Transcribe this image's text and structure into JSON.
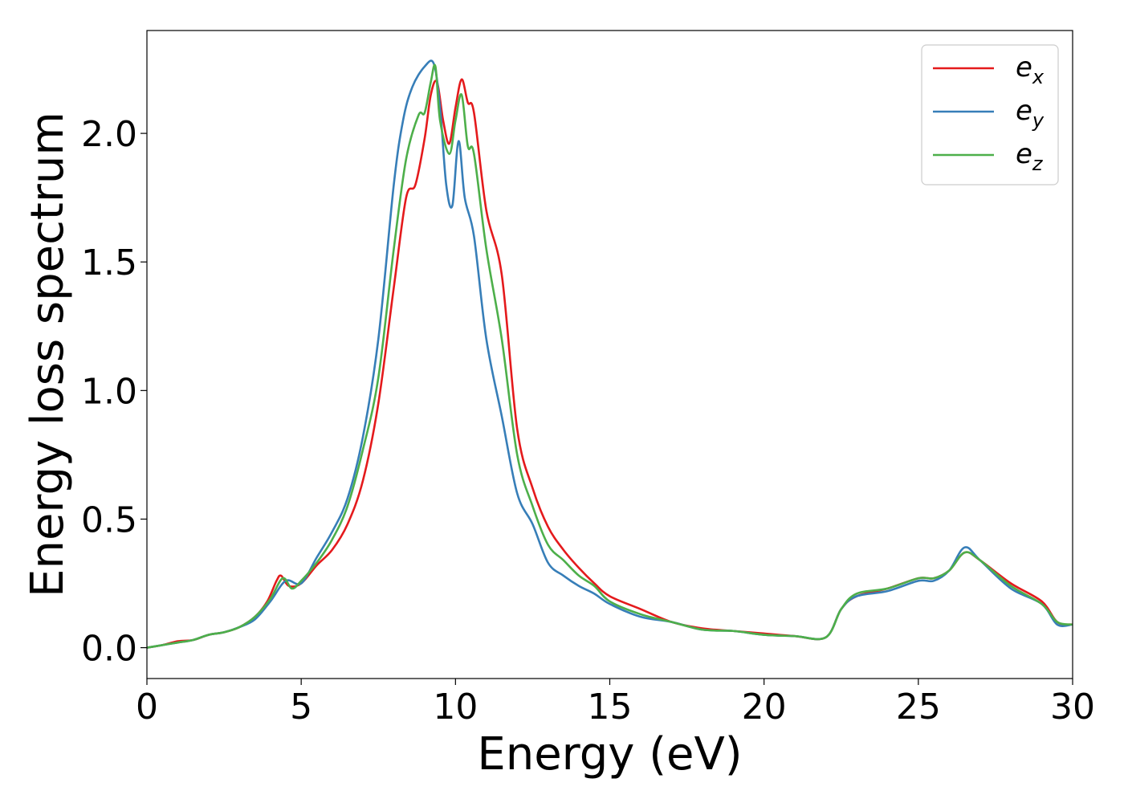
{
  "chart_data": {
    "type": "line",
    "xlabel": "Energy (eV)",
    "ylabel": "Energy loss spectrum",
    "xlim": [
      0,
      30
    ],
    "ylim": [
      -0.12,
      2.4
    ],
    "xticks": [
      0,
      5,
      10,
      15,
      20,
      25,
      30
    ],
    "xtick_labels": [
      "0",
      "5",
      "10",
      "15",
      "20",
      "25",
      "30"
    ],
    "yticks": [
      0.0,
      0.5,
      1.0,
      1.5,
      2.0
    ],
    "ytick_labels": [
      "0.0",
      "0.5",
      "1.0",
      "1.5",
      "2.0"
    ],
    "grid": false,
    "legend_position": "top-right",
    "series": [
      {
        "name": "e_x",
        "label_base": "e",
        "label_sub": "x",
        "color": "#e41a1c",
        "points": [
          [
            0.0,
            0.0
          ],
          [
            0.5,
            0.01
          ],
          [
            1.0,
            0.025
          ],
          [
            1.5,
            0.03
          ],
          [
            2.0,
            0.05
          ],
          [
            2.5,
            0.06
          ],
          [
            3.0,
            0.08
          ],
          [
            3.5,
            0.12
          ],
          [
            3.9,
            0.18
          ],
          [
            4.2,
            0.26
          ],
          [
            4.35,
            0.28
          ],
          [
            4.6,
            0.24
          ],
          [
            5.0,
            0.25
          ],
          [
            5.5,
            0.32
          ],
          [
            6.0,
            0.38
          ],
          [
            6.5,
            0.48
          ],
          [
            7.0,
            0.65
          ],
          [
            7.5,
            0.95
          ],
          [
            8.0,
            1.4
          ],
          [
            8.4,
            1.75
          ],
          [
            8.7,
            1.8
          ],
          [
            9.0,
            1.98
          ],
          [
            9.2,
            2.15
          ],
          [
            9.4,
            2.2
          ],
          [
            9.6,
            2.05
          ],
          [
            9.8,
            1.96
          ],
          [
            10.0,
            2.1
          ],
          [
            10.2,
            2.21
          ],
          [
            10.4,
            2.12
          ],
          [
            10.6,
            2.08
          ],
          [
            11.0,
            1.7
          ],
          [
            11.5,
            1.45
          ],
          [
            12.0,
            0.85
          ],
          [
            12.5,
            0.62
          ],
          [
            13.0,
            0.47
          ],
          [
            13.5,
            0.38
          ],
          [
            14.0,
            0.31
          ],
          [
            14.5,
            0.25
          ],
          [
            15.0,
            0.2
          ],
          [
            16.0,
            0.15
          ],
          [
            17.0,
            0.1
          ],
          [
            18.0,
            0.075
          ],
          [
            19.0,
            0.065
          ],
          [
            20.0,
            0.055
          ],
          [
            21.0,
            0.045
          ],
          [
            22.0,
            0.04
          ],
          [
            22.5,
            0.15
          ],
          [
            23.0,
            0.2
          ],
          [
            24.0,
            0.23
          ],
          [
            25.0,
            0.27
          ],
          [
            25.5,
            0.27
          ],
          [
            26.0,
            0.3
          ],
          [
            26.5,
            0.37
          ],
          [
            27.0,
            0.34
          ],
          [
            28.0,
            0.25
          ],
          [
            29.0,
            0.18
          ],
          [
            29.5,
            0.1
          ],
          [
            30.0,
            0.09
          ]
        ]
      },
      {
        "name": "e_y",
        "label_base": "e",
        "label_sub": "y",
        "color": "#377eb8",
        "points": [
          [
            0.0,
            0.0
          ],
          [
            0.5,
            0.01
          ],
          [
            1.0,
            0.02
          ],
          [
            1.5,
            0.03
          ],
          [
            2.0,
            0.05
          ],
          [
            2.5,
            0.06
          ],
          [
            3.0,
            0.08
          ],
          [
            3.5,
            0.11
          ],
          [
            4.0,
            0.18
          ],
          [
            4.5,
            0.26
          ],
          [
            5.0,
            0.25
          ],
          [
            5.5,
            0.35
          ],
          [
            6.0,
            0.45
          ],
          [
            6.5,
            0.58
          ],
          [
            7.0,
            0.82
          ],
          [
            7.5,
            1.2
          ],
          [
            8.0,
            1.8
          ],
          [
            8.3,
            2.05
          ],
          [
            8.6,
            2.18
          ],
          [
            9.0,
            2.26
          ],
          [
            9.3,
            2.27
          ],
          [
            9.5,
            2.1
          ],
          [
            9.7,
            1.8
          ],
          [
            9.9,
            1.72
          ],
          [
            10.1,
            1.97
          ],
          [
            10.3,
            1.75
          ],
          [
            10.6,
            1.6
          ],
          [
            11.0,
            1.2
          ],
          [
            11.5,
            0.9
          ],
          [
            12.0,
            0.6
          ],
          [
            12.5,
            0.48
          ],
          [
            13.0,
            0.33
          ],
          [
            13.5,
            0.28
          ],
          [
            14.0,
            0.24
          ],
          [
            14.5,
            0.21
          ],
          [
            15.0,
            0.17
          ],
          [
            16.0,
            0.12
          ],
          [
            17.0,
            0.1
          ],
          [
            18.0,
            0.07
          ],
          [
            19.0,
            0.065
          ],
          [
            20.0,
            0.05
          ],
          [
            21.0,
            0.045
          ],
          [
            22.0,
            0.04
          ],
          [
            22.5,
            0.15
          ],
          [
            23.0,
            0.2
          ],
          [
            24.0,
            0.22
          ],
          [
            25.0,
            0.26
          ],
          [
            25.5,
            0.26
          ],
          [
            26.0,
            0.3
          ],
          [
            26.5,
            0.39
          ],
          [
            27.0,
            0.34
          ],
          [
            28.0,
            0.23
          ],
          [
            29.0,
            0.17
          ],
          [
            29.5,
            0.09
          ],
          [
            30.0,
            0.09
          ]
        ]
      },
      {
        "name": "e_z",
        "label_base": "e",
        "label_sub": "z",
        "color": "#4daf4a",
        "points": [
          [
            0.0,
            0.0
          ],
          [
            0.5,
            0.01
          ],
          [
            1.0,
            0.02
          ],
          [
            1.5,
            0.03
          ],
          [
            2.0,
            0.05
          ],
          [
            2.5,
            0.06
          ],
          [
            3.0,
            0.08
          ],
          [
            3.5,
            0.12
          ],
          [
            4.0,
            0.19
          ],
          [
            4.4,
            0.27
          ],
          [
            4.7,
            0.23
          ],
          [
            5.0,
            0.26
          ],
          [
            5.5,
            0.33
          ],
          [
            6.0,
            0.42
          ],
          [
            6.5,
            0.55
          ],
          [
            7.0,
            0.77
          ],
          [
            7.5,
            1.05
          ],
          [
            8.0,
            1.55
          ],
          [
            8.4,
            1.9
          ],
          [
            8.8,
            2.07
          ],
          [
            9.0,
            2.08
          ],
          [
            9.2,
            2.2
          ],
          [
            9.35,
            2.26
          ],
          [
            9.5,
            2.05
          ],
          [
            9.8,
            1.92
          ],
          [
            10.0,
            2.05
          ],
          [
            10.2,
            2.15
          ],
          [
            10.4,
            1.95
          ],
          [
            10.6,
            1.92
          ],
          [
            11.0,
            1.55
          ],
          [
            11.5,
            1.2
          ],
          [
            12.0,
            0.75
          ],
          [
            12.5,
            0.55
          ],
          [
            13.0,
            0.4
          ],
          [
            13.5,
            0.34
          ],
          [
            14.0,
            0.28
          ],
          [
            14.5,
            0.24
          ],
          [
            15.0,
            0.18
          ],
          [
            16.0,
            0.13
          ],
          [
            17.0,
            0.1
          ],
          [
            18.0,
            0.07
          ],
          [
            19.0,
            0.065
          ],
          [
            20.0,
            0.05
          ],
          [
            21.0,
            0.045
          ],
          [
            22.0,
            0.04
          ],
          [
            22.5,
            0.15
          ],
          [
            23.0,
            0.21
          ],
          [
            24.0,
            0.23
          ],
          [
            25.0,
            0.27
          ],
          [
            25.5,
            0.27
          ],
          [
            26.0,
            0.3
          ],
          [
            26.5,
            0.37
          ],
          [
            27.0,
            0.34
          ],
          [
            28.0,
            0.24
          ],
          [
            29.0,
            0.17
          ],
          [
            29.5,
            0.1
          ],
          [
            30.0,
            0.09
          ]
        ]
      }
    ]
  }
}
